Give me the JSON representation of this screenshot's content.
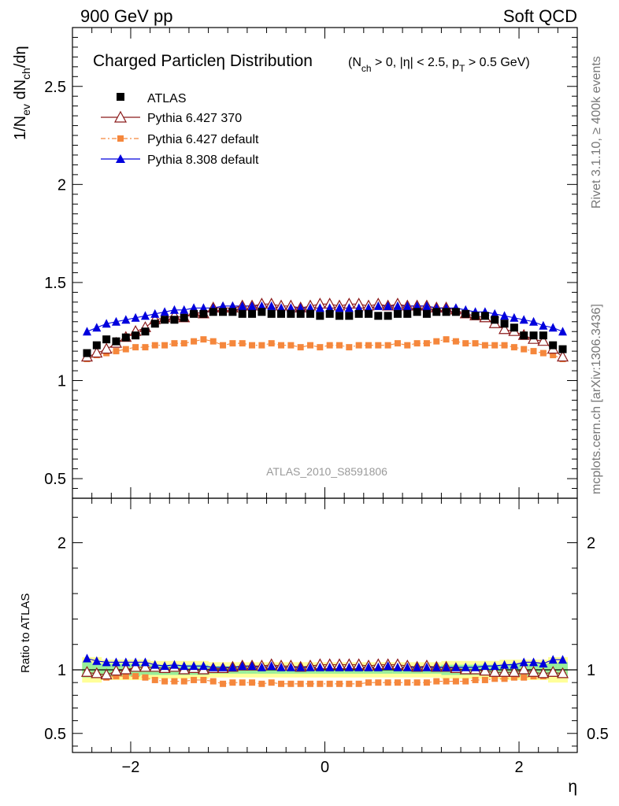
{
  "header": {
    "left": "900 GeV pp",
    "right": "Soft QCD"
  },
  "side_labels": {
    "rivet": "Rivet 3.1.10, ≥ 400k events",
    "mcplots": "mcplots.cern.ch [arXiv:1306.3436]"
  },
  "main_plot": {
    "title": "Charged Particleη Distribution",
    "subtitle_parts": [
      "(N",
      "ch",
      " > 0, |η| < 2.5, p",
      "T",
      " > 0.5 GeV)"
    ],
    "ylabel_parts": [
      "1/N",
      "ev",
      " dN",
      "ch",
      "/dη"
    ],
    "watermark": "ATLAS_2010_S8591806",
    "y_ticks": [
      "0.5",
      "1",
      "1.5",
      "2",
      "2.5"
    ],
    "legend": [
      {
        "label": "ATLAS",
        "color": "#000000",
        "marker": "square-filled"
      },
      {
        "label": "Pythia 6.427 370",
        "color": "#8b1a1a",
        "marker": "triangle-open"
      },
      {
        "label": "Pythia 6.427 default",
        "color": "#f5873c",
        "marker": "square-filled"
      },
      {
        "label": "Pythia 8.308 default",
        "color": "#0000dd",
        "marker": "triangle-filled"
      }
    ]
  },
  "ratio_plot": {
    "ylabel": "Ratio to ATLAS",
    "y_ticks": [
      "0.5",
      "1",
      "2"
    ],
    "x_ticks": [
      "−2",
      "0",
      "2"
    ],
    "xlabel": "η"
  },
  "chart_data": {
    "type": "scatter",
    "title": "Charged Particleη Distribution",
    "xlabel": "η",
    "ylabel": "1/N_ev dN_ch/dη",
    "xlim": [
      -2.6,
      2.6
    ],
    "ylim": [
      0.4,
      2.8
    ],
    "ratio_ylim": [
      0.35,
      2.35
    ],
    "x": [
      -2.45,
      -2.35,
      -2.25,
      -2.15,
      -2.05,
      -1.95,
      -1.85,
      -1.75,
      -1.65,
      -1.55,
      -1.45,
      -1.35,
      -1.25,
      -1.15,
      -1.05,
      -0.95,
      -0.85,
      -0.75,
      -0.65,
      -0.55,
      -0.45,
      -0.35,
      -0.25,
      -0.15,
      -0.05,
      0.05,
      0.15,
      0.25,
      0.35,
      0.45,
      0.55,
      0.65,
      0.75,
      0.85,
      0.95,
      1.05,
      1.15,
      1.25,
      1.35,
      1.45,
      1.55,
      1.65,
      1.75,
      1.85,
      1.95,
      2.05,
      2.15,
      2.25,
      2.35,
      2.45
    ],
    "series": [
      {
        "name": "ATLAS",
        "color": "#000000",
        "values": [
          1.14,
          1.18,
          1.21,
          1.2,
          1.22,
          1.23,
          1.25,
          1.29,
          1.31,
          1.31,
          1.32,
          1.34,
          1.34,
          1.35,
          1.35,
          1.35,
          1.34,
          1.34,
          1.35,
          1.34,
          1.34,
          1.34,
          1.34,
          1.34,
          1.33,
          1.34,
          1.33,
          1.33,
          1.34,
          1.34,
          1.33,
          1.33,
          1.34,
          1.34,
          1.35,
          1.34,
          1.35,
          1.35,
          1.35,
          1.34,
          1.33,
          1.33,
          1.31,
          1.29,
          1.27,
          1.23,
          1.23,
          1.23,
          1.18,
          1.16
        ],
        "ratio": [
          1.0,
          1.0,
          1.0,
          1.0,
          1.0,
          1.0,
          1.0,
          1.0,
          1.0,
          1.0,
          1.0,
          1.0,
          1.0,
          1.0,
          1.0,
          1.0,
          1.0,
          1.0,
          1.0,
          1.0,
          1.0,
          1.0,
          1.0,
          1.0,
          1.0,
          1.0,
          1.0,
          1.0,
          1.0,
          1.0,
          1.0,
          1.0,
          1.0,
          1.0,
          1.0,
          1.0,
          1.0,
          1.0,
          1.0,
          1.0,
          1.0,
          1.0,
          1.0,
          1.0,
          1.0,
          1.0,
          1.0,
          1.0,
          1.0,
          1.0
        ]
      },
      {
        "name": "Pythia 6.427 370",
        "color": "#8b1a1a",
        "values": [
          1.12,
          1.14,
          1.16,
          1.19,
          1.22,
          1.25,
          1.27,
          1.31,
          1.32,
          1.33,
          1.32,
          1.35,
          1.34,
          1.37,
          1.37,
          1.37,
          1.38,
          1.38,
          1.39,
          1.39,
          1.38,
          1.38,
          1.37,
          1.38,
          1.39,
          1.39,
          1.38,
          1.39,
          1.39,
          1.38,
          1.39,
          1.38,
          1.39,
          1.38,
          1.38,
          1.38,
          1.37,
          1.37,
          1.36,
          1.34,
          1.33,
          1.32,
          1.29,
          1.26,
          1.25,
          1.23,
          1.21,
          1.2,
          1.16,
          1.12
        ],
        "ratio": [
          0.98,
          0.97,
          0.96,
          0.99,
          1.0,
          1.02,
          1.02,
          1.02,
          1.01,
          1.02,
          1.0,
          1.01,
          1.0,
          1.01,
          1.01,
          1.02,
          1.03,
          1.03,
          1.03,
          1.04,
          1.03,
          1.03,
          1.02,
          1.03,
          1.04,
          1.04,
          1.04,
          1.04,
          1.04,
          1.03,
          1.04,
          1.04,
          1.04,
          1.03,
          1.02,
          1.03,
          1.02,
          1.02,
          1.01,
          1.0,
          1.0,
          0.99,
          0.98,
          0.98,
          0.98,
          1.0,
          0.98,
          0.97,
          0.98,
          0.97
        ]
      },
      {
        "name": "Pythia 6.427 default",
        "color": "#f5873c",
        "values": [
          1.11,
          1.13,
          1.14,
          1.15,
          1.16,
          1.17,
          1.17,
          1.18,
          1.18,
          1.19,
          1.19,
          1.2,
          1.21,
          1.2,
          1.18,
          1.19,
          1.19,
          1.18,
          1.18,
          1.19,
          1.18,
          1.18,
          1.17,
          1.18,
          1.17,
          1.18,
          1.18,
          1.17,
          1.18,
          1.18,
          1.18,
          1.18,
          1.19,
          1.18,
          1.19,
          1.19,
          1.2,
          1.21,
          1.2,
          1.19,
          1.19,
          1.18,
          1.18,
          1.18,
          1.17,
          1.16,
          1.15,
          1.14,
          1.13,
          1.11
        ],
        "ratio": [
          0.97,
          0.96,
          0.94,
          0.95,
          0.95,
          0.95,
          0.94,
          0.92,
          0.91,
          0.91,
          0.91,
          0.92,
          0.92,
          0.91,
          0.89,
          0.9,
          0.9,
          0.9,
          0.89,
          0.9,
          0.89,
          0.89,
          0.89,
          0.89,
          0.89,
          0.89,
          0.89,
          0.89,
          0.89,
          0.9,
          0.9,
          0.9,
          0.9,
          0.9,
          0.9,
          0.9,
          0.91,
          0.91,
          0.91,
          0.91,
          0.92,
          0.92,
          0.93,
          0.93,
          0.94,
          0.94,
          0.95,
          0.95,
          0.97,
          0.96
        ]
      },
      {
        "name": "Pythia 8.308 default",
        "color": "#0000dd",
        "values": [
          1.25,
          1.27,
          1.29,
          1.3,
          1.31,
          1.32,
          1.33,
          1.34,
          1.35,
          1.36,
          1.36,
          1.37,
          1.37,
          1.37,
          1.38,
          1.38,
          1.38,
          1.38,
          1.38,
          1.38,
          1.37,
          1.37,
          1.37,
          1.37,
          1.37,
          1.37,
          1.37,
          1.37,
          1.37,
          1.37,
          1.38,
          1.38,
          1.38,
          1.38,
          1.38,
          1.38,
          1.37,
          1.37,
          1.37,
          1.36,
          1.35,
          1.35,
          1.34,
          1.33,
          1.32,
          1.31,
          1.3,
          1.28,
          1.27,
          1.25
        ],
        "ratio": [
          1.09,
          1.07,
          1.06,
          1.06,
          1.06,
          1.06,
          1.06,
          1.04,
          1.03,
          1.04,
          1.03,
          1.03,
          1.03,
          1.02,
          1.02,
          1.02,
          1.03,
          1.03,
          1.02,
          1.03,
          1.02,
          1.02,
          1.02,
          1.02,
          1.02,
          1.02,
          1.02,
          1.02,
          1.02,
          1.02,
          1.02,
          1.03,
          1.02,
          1.02,
          1.02,
          1.02,
          1.02,
          1.02,
          1.02,
          1.02,
          1.02,
          1.03,
          1.03,
          1.04,
          1.04,
          1.06,
          1.06,
          1.05,
          1.08,
          1.08
        ]
      }
    ],
    "ratio_band_inner": [
      0.06,
      0.05,
      0.05,
      0.05,
      0.05,
      0.05,
      0.04,
      0.04,
      0.04,
      0.04,
      0.04,
      0.04,
      0.04,
      0.03,
      0.03,
      0.03,
      0.03,
      0.03,
      0.03,
      0.03,
      0.03,
      0.03,
      0.03,
      0.03,
      0.03,
      0.03,
      0.03,
      0.03,
      0.03,
      0.03,
      0.03,
      0.03,
      0.03,
      0.03,
      0.03,
      0.03,
      0.03,
      0.04,
      0.04,
      0.04,
      0.04,
      0.04,
      0.04,
      0.04,
      0.05,
      0.05,
      0.05,
      0.05,
      0.05,
      0.06
    ],
    "ratio_band_outer": [
      0.1,
      0.1,
      0.08,
      0.08,
      0.08,
      0.08,
      0.08,
      0.07,
      0.07,
      0.07,
      0.07,
      0.07,
      0.07,
      0.06,
      0.06,
      0.06,
      0.06,
      0.06,
      0.06,
      0.06,
      0.06,
      0.06,
      0.06,
      0.06,
      0.06,
      0.06,
      0.06,
      0.06,
      0.06,
      0.06,
      0.06,
      0.06,
      0.06,
      0.06,
      0.06,
      0.06,
      0.06,
      0.07,
      0.07,
      0.07,
      0.07,
      0.07,
      0.07,
      0.08,
      0.08,
      0.08,
      0.08,
      0.08,
      0.1,
      0.1
    ]
  }
}
